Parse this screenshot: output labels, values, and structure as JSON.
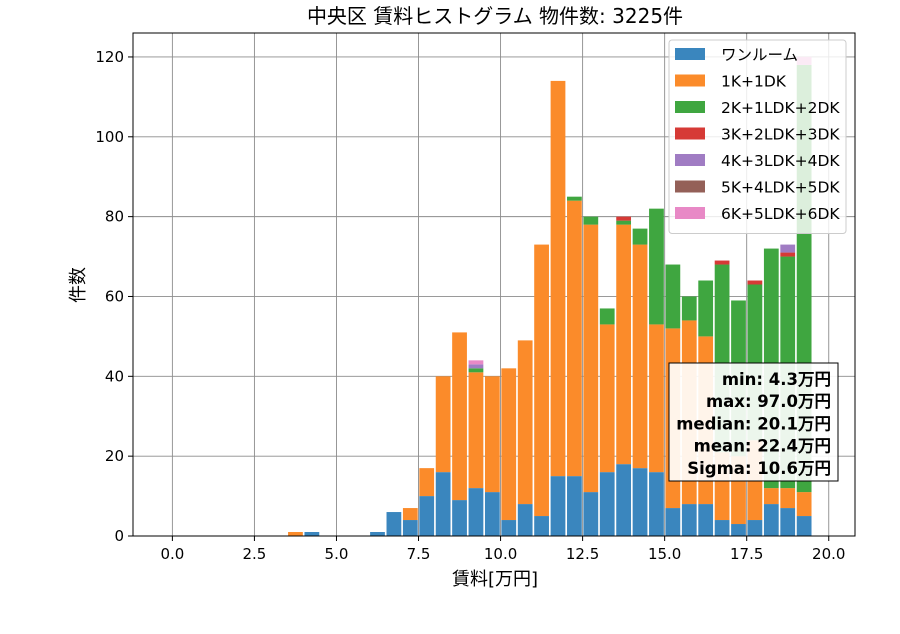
{
  "chart_data": {
    "type": "bar",
    "stacked": true,
    "title": "中央区 賃料ヒストグラム  物件数: 3225件",
    "xlabel": "賃料[万円]",
    "ylabel": "件数",
    "xlim": [
      -1.2,
      20.8
    ],
    "ylim": [
      0,
      126
    ],
    "xticks": [
      0.0,
      2.5,
      5.0,
      7.5,
      10.0,
      12.5,
      15.0,
      17.5,
      20.0
    ],
    "xtick_labels": [
      "0.0",
      "2.5",
      "5.0",
      "7.5",
      "10.0",
      "12.5",
      "15.0",
      "17.5",
      "20.0"
    ],
    "yticks": [
      0,
      20,
      40,
      60,
      80,
      100,
      120
    ],
    "ytick_labels": [
      "0",
      "20",
      "40",
      "60",
      "80",
      "100",
      "120"
    ],
    "grid": true,
    "legend_position": "top-right",
    "bin_width": 0.5,
    "bins": [
      3.75,
      4.25,
      6.25,
      6.75,
      7.25,
      7.75,
      8.25,
      8.75,
      9.25,
      9.75,
      10.25,
      10.75,
      11.25,
      11.75,
      12.25,
      12.75,
      13.25,
      13.75,
      14.25,
      14.75,
      15.25,
      15.75,
      16.25,
      16.75,
      17.25,
      17.75,
      18.25,
      18.75,
      19.25
    ],
    "series": [
      {
        "name": "ワンルーム",
        "color": "#3a86be",
        "values": [
          0,
          1,
          1,
          6,
          4,
          10,
          16,
          9,
          12,
          11,
          4,
          8,
          5,
          15,
          15,
          11,
          16,
          18,
          17,
          16,
          7,
          8,
          8,
          4,
          3,
          4,
          8,
          7,
          5
        ]
      },
      {
        "name": "1K+1DK",
        "color": "#fb8b2a",
        "values": [
          1,
          0,
          0,
          0,
          3,
          7,
          24,
          42,
          29,
          29,
          38,
          41,
          68,
          99,
          69,
          67,
          37,
          60,
          56,
          37,
          45,
          46,
          42,
          17,
          17,
          20,
          4,
          5,
          6
        ]
      },
      {
        "name": "2K+1LDK+2DK",
        "color": "#3fa640",
        "values": [
          0,
          0,
          0,
          0,
          0,
          0,
          0,
          0,
          1,
          0,
          0,
          0,
          0,
          0,
          1,
          2,
          4,
          1,
          4,
          29,
          16,
          6,
          14,
          47,
          39,
          39,
          60,
          58,
          107
        ]
      },
      {
        "name": "3K+2LDK+3DK",
        "color": "#d63a36",
        "values": [
          0,
          0,
          0,
          0,
          0,
          0,
          0,
          0,
          0,
          0,
          0,
          0,
          0,
          0,
          0,
          0,
          0,
          1,
          0,
          0,
          0,
          0,
          0,
          1,
          0,
          1,
          0,
          1,
          0
        ]
      },
      {
        "name": "4K+3LDK+4DK",
        "color": "#a07cc3",
        "values": [
          0,
          0,
          0,
          0,
          0,
          0,
          0,
          0,
          1,
          0,
          0,
          0,
          0,
          0,
          0,
          0,
          0,
          0,
          0,
          0,
          0,
          0,
          0,
          0,
          0,
          0,
          0,
          2,
          0
        ]
      },
      {
        "name": "5K+4LDK+5DK",
        "color": "#946058",
        "values": [
          0,
          0,
          0,
          0,
          0,
          0,
          0,
          0,
          0,
          0,
          0,
          0,
          0,
          0,
          0,
          0,
          0,
          0,
          0,
          0,
          0,
          0,
          0,
          0,
          0,
          0,
          0,
          0,
          0
        ]
      },
      {
        "name": "6K+5LDK+6DK",
        "color": "#e889c6",
        "values": [
          0,
          0,
          0,
          0,
          0,
          0,
          0,
          0,
          1,
          0,
          0,
          0,
          0,
          0,
          0,
          0,
          0,
          0,
          0,
          0,
          0,
          0,
          0,
          0,
          0,
          0,
          0,
          0,
          2
        ]
      }
    ],
    "stats_box": [
      "min: 4.3万円",
      "max: 97.0万円",
      "median: 20.1万円",
      "mean: 22.4万円",
      "Sigma: 10.6万円"
    ]
  }
}
